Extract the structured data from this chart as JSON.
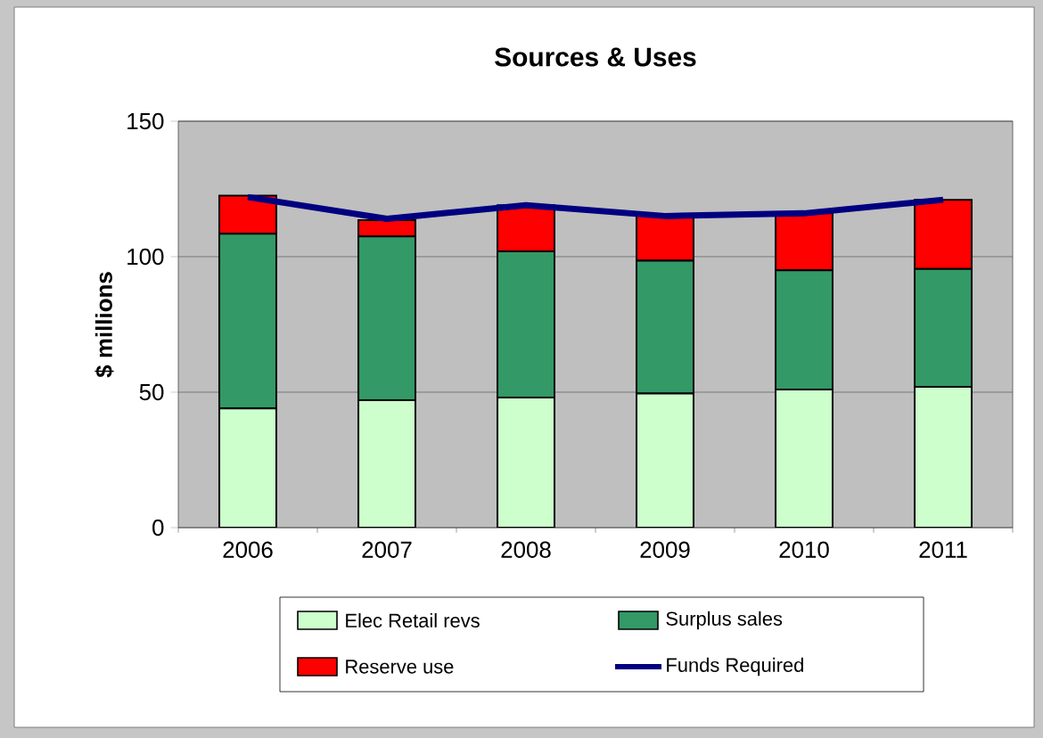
{
  "chart_data": {
    "type": "bar",
    "title": "Sources & Uses",
    "ylabel": "$ millions",
    "stacked": true,
    "categories": [
      "2006",
      "2007",
      "2008",
      "2009",
      "2010",
      "2011"
    ],
    "series": [
      {
        "name": "Elec Retail revs",
        "color": "#ccffcc",
        "values": [
          44,
          47,
          48,
          49.5,
          51,
          52
        ]
      },
      {
        "name": "Surplus sales",
        "color": "#339966",
        "values": [
          64.5,
          60.5,
          54,
          49,
          44,
          43.5
        ]
      },
      {
        "name": "Reserve use",
        "color": "#ff0000",
        "values": [
          14,
          6,
          17,
          17,
          21,
          25.5
        ]
      },
      {
        "name": "Funds Required",
        "type": "line",
        "color": "#000080",
        "values": [
          122,
          114,
          119,
          115,
          116,
          121
        ]
      }
    ],
    "ylim": [
      0,
      150
    ],
    "yticks": [
      0,
      50,
      100,
      150
    ],
    "grid": "y",
    "legend": "bottom"
  }
}
